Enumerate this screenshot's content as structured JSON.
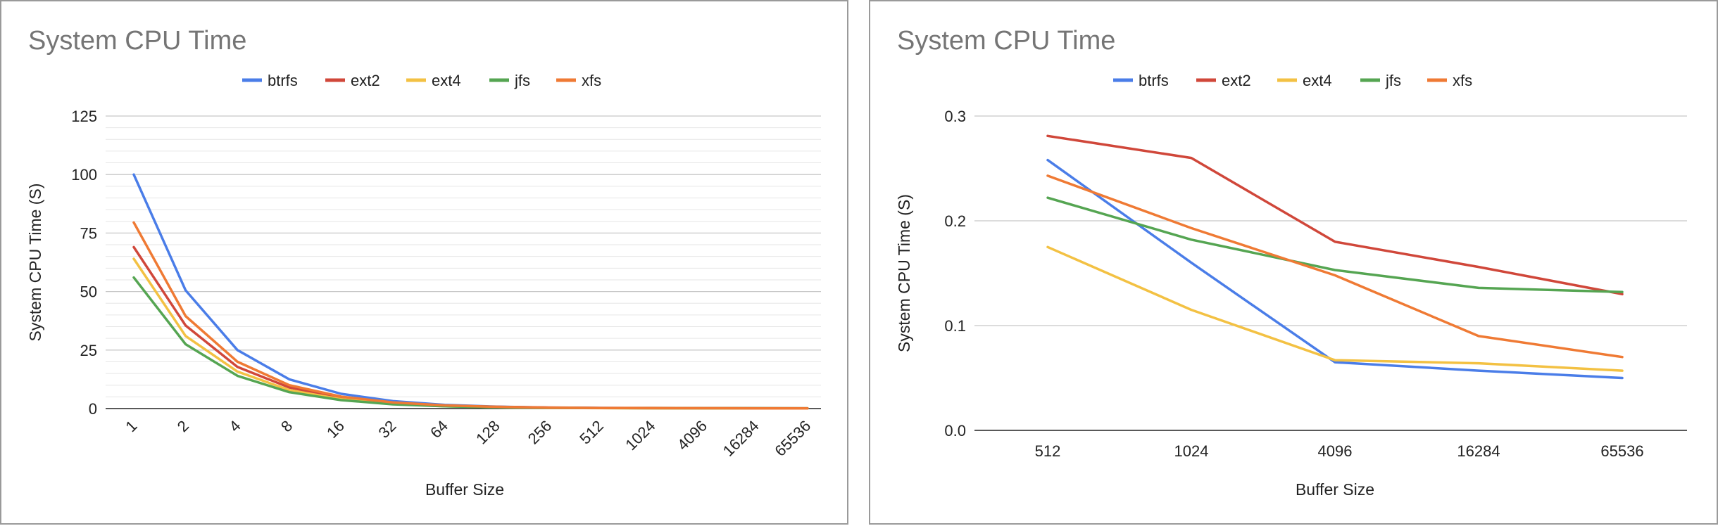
{
  "colors": {
    "btrfs": "#4a7de8",
    "ext2": "#d0473a",
    "ext4": "#f3c143",
    "jfs": "#55a552",
    "xfs": "#ef7a34"
  },
  "chart_data": [
    {
      "type": "line",
      "title": "System CPU Time",
      "xlabel": "Buffer Size",
      "ylabel": "System CPU Time (S)",
      "categories": [
        "1",
        "2",
        "4",
        "8",
        "16",
        "32",
        "64",
        "128",
        "256",
        "512",
        "1024",
        "4096",
        "16284",
        "65536"
      ],
      "ylim": [
        0,
        125
      ],
      "yticks": [
        0,
        25,
        50,
        75,
        100,
        125
      ],
      "yticks_labels": [
        "0",
        "25",
        "50",
        "75",
        "100",
        "125"
      ],
      "minor_grid_step": 5,
      "legend_position": "top",
      "xtick_rotation": -45,
      "series": [
        {
          "name": "btrfs",
          "values": [
            100,
            50.5,
            25,
            12.5,
            6.3,
            3.2,
            1.6,
            0.8,
            0.4,
            0.26,
            0.16,
            0.065,
            0.057,
            0.05
          ]
        },
        {
          "name": "ext2",
          "values": [
            69,
            35.5,
            17.8,
            9.0,
            4.6,
            2.4,
            1.3,
            0.75,
            0.45,
            0.28,
            0.26,
            0.18,
            0.155,
            0.13
          ]
        },
        {
          "name": "ext4",
          "values": [
            64,
            31,
            15.8,
            7.9,
            4.0,
            2.0,
            1.0,
            0.55,
            0.3,
            0.175,
            0.115,
            0.067,
            0.064,
            0.057
          ]
        },
        {
          "name": "jfs",
          "values": [
            56,
            27.5,
            14,
            7.0,
            3.6,
            1.8,
            0.95,
            0.5,
            0.3,
            0.222,
            0.182,
            0.153,
            0.136,
            0.132
          ]
        },
        {
          "name": "xfs",
          "values": [
            79.5,
            39.5,
            20,
            10,
            5.1,
            2.6,
            1.35,
            0.75,
            0.4,
            0.243,
            0.193,
            0.148,
            0.09,
            0.07
          ]
        }
      ]
    },
    {
      "type": "line",
      "title": "System CPU Time",
      "xlabel": "Buffer Size",
      "ylabel": "System CPU Time (S)",
      "categories": [
        "512",
        "1024",
        "4096",
        "16284",
        "65536"
      ],
      "ylim": [
        0,
        0.3
      ],
      "yticks": [
        0,
        0.1,
        0.2,
        0.3
      ],
      "yticks_labels": [
        "0.0",
        "0.1",
        "0.2",
        "0.3"
      ],
      "minor_grid_step": 0,
      "legend_position": "top",
      "xtick_rotation": 0,
      "series": [
        {
          "name": "btrfs",
          "values": [
            0.258,
            0.16,
            0.065,
            0.057,
            0.05
          ]
        },
        {
          "name": "ext2",
          "values": [
            0.281,
            0.26,
            0.18,
            0.156,
            0.13
          ]
        },
        {
          "name": "ext4",
          "values": [
            0.175,
            0.115,
            0.067,
            0.064,
            0.057
          ]
        },
        {
          "name": "jfs",
          "values": [
            0.222,
            0.182,
            0.153,
            0.136,
            0.132
          ]
        },
        {
          "name": "xfs",
          "values": [
            0.243,
            0.193,
            0.148,
            0.09,
            0.07
          ]
        }
      ]
    }
  ]
}
